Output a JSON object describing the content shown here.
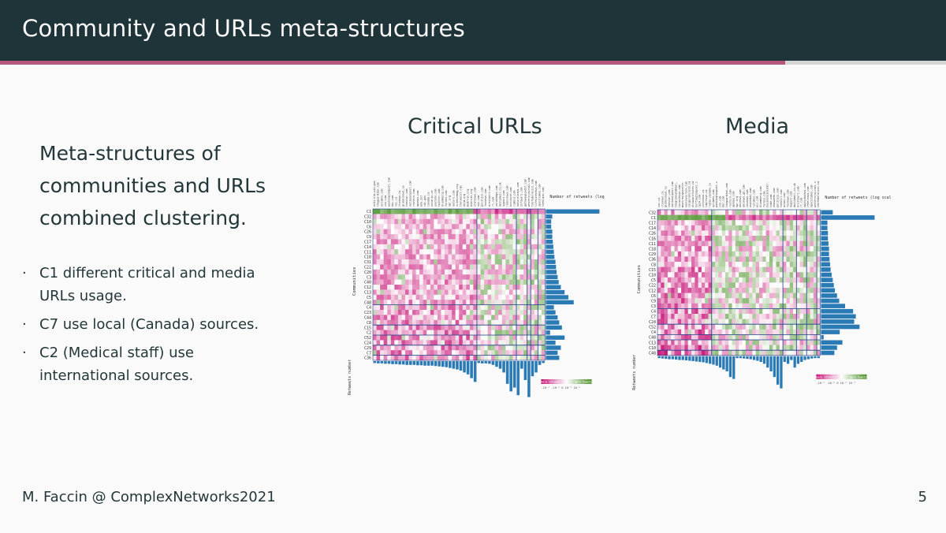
{
  "slide": {
    "title": "Community and URLs meta-structures",
    "progress": 0.83,
    "lead_text": "Meta-structures of communities and URLs combined clustering.",
    "bullets": [
      {
        "key": "C1",
        "text": " different critical and media URLs usage."
      },
      {
        "key": "C7",
        "text": " use local (Canada) sources."
      },
      {
        "key": "C2",
        "text": " (Medical staff) use international sources."
      }
    ],
    "footer_author": "M. Faccin @ ComplexNetworks2021",
    "page_number": "5"
  },
  "figures": [
    {
      "panel_title": "Critical URLs",
      "y_axis_label": "Communities",
      "bottom_label": "Retweets number",
      "right_label": "Number of retweets (log scale)",
      "rows": [
        "C1",
        "C32",
        "C10",
        "C6",
        "C26",
        "C9",
        "C17",
        "C14",
        "C11",
        "C18",
        "C31",
        "C22",
        "C20",
        "C3",
        "C40",
        "C12",
        "C13",
        "C5",
        "C48",
        "C4",
        "C23",
        "C44",
        "C8",
        "C15",
        "C2",
        "C52",
        "C24",
        "C29",
        "C7",
        "C36"
      ],
      "n_cols": 48,
      "row_splits": [
        19,
        23,
        25,
        27,
        29
      ],
      "col_splits": [
        29,
        40,
        43,
        44,
        46
      ],
      "right_bars": [
        1.0,
        0.12,
        0.1,
        0.1,
        0.12,
        0.12,
        0.13,
        0.14,
        0.15,
        0.16,
        0.18,
        0.19,
        0.2,
        0.22,
        0.24,
        0.28,
        0.35,
        0.42,
        0.52,
        0.15,
        0.18,
        0.22,
        0.25,
        0.3,
        0.08,
        0.35,
        0.18,
        0.28,
        0.22,
        0.25
      ],
      "bottom_bars": [
        0.05,
        0.06,
        0.06,
        0.07,
        0.07,
        0.08,
        0.08,
        0.09,
        0.09,
        0.1,
        0.1,
        0.1,
        0.11,
        0.11,
        0.12,
        0.12,
        0.12,
        0.13,
        0.14,
        0.15,
        0.16,
        0.18,
        0.2,
        0.22,
        0.25,
        0.3,
        0.35,
        0.45,
        0.55,
        0.05,
        0.06,
        0.06,
        0.07,
        0.1,
        0.15,
        0.2,
        0.3,
        0.6,
        0.8,
        0.7,
        0.9,
        0.2,
        0.5,
        0.95,
        0.4,
        0.3,
        0.1,
        0.05
      ],
      "colorbar": {
        "left": "more retweets",
        "right": "more tweets",
        "ticks": "-10⁻¹ -10⁻² 0  10⁻² 10⁻¹"
      },
      "col_labels": [
        "ncbi.nlm.nih.gov",
        "theguardian.com",
        "nytimes.com",
        "cnn.com",
        "washingtonpost.com",
        "bbc.com",
        "cbc.ca",
        "ctvnews.ca",
        "globalnews.ca",
        "thestar.com",
        "nationalpost.com",
        "reuters.com",
        "apnews.com",
        "who.int",
        "cdc.gov",
        "canada.ca",
        "ontario.ca",
        "youtube.com",
        "twitter.com",
        "bloomberg.com",
        "forbes.com",
        "npr.org",
        "nature.com",
        "sciencemag.org",
        "thelancet.com",
        "nejm.org",
        "medrxiv.org",
        "biorxiv.org",
        "statnews.com",
        "vox.com",
        "politico.com",
        "foxnews.com",
        "breitbart.com",
        "rt.com",
        "zerohedge.com",
        "dailymail.co.uk",
        "nypost.com",
        "rebelnews.com",
        "bitchute.com",
        "rumble.com",
        "naturalnews.com",
        "infowars.com",
        "gatewaypundit.com",
        "westernjournal.com",
        "thefederalist.com",
        "lifesitenews.com",
        "epochtimes.com",
        "theblaze.com"
      ]
    },
    {
      "panel_title": "Media",
      "y_axis_label": "Communities",
      "bottom_label": "Retweets number",
      "right_label": "Number of retweets (log scale)",
      "rows": [
        "C32",
        "C1",
        "C17",
        "C14",
        "C26",
        "C16",
        "C11",
        "C18",
        "C29",
        "C36",
        "C8",
        "C15",
        "C10",
        "C5",
        "C22",
        "C12",
        "C6",
        "C9",
        "C3",
        "C4",
        "C7",
        "C24",
        "C52",
        "C4",
        "C48",
        "C13",
        "C10",
        "C48"
      ],
      "n_cols": 48,
      "row_splits": [
        19,
        22,
        24,
        25,
        27
      ],
      "col_splits": [
        16,
        37,
        41,
        44,
        47
      ],
      "right_bars": [
        0.22,
        1.0,
        0.12,
        0.12,
        0.13,
        0.13,
        0.14,
        0.15,
        0.15,
        0.16,
        0.17,
        0.18,
        0.2,
        0.22,
        0.24,
        0.26,
        0.3,
        0.34,
        0.45,
        0.6,
        0.65,
        0.62,
        0.72,
        0.35,
        0.05,
        0.4,
        0.3,
        0.25
      ],
      "bottom_bars": [
        0.05,
        0.06,
        0.07,
        0.08,
        0.08,
        0.09,
        0.1,
        0.1,
        0.11,
        0.12,
        0.13,
        0.14,
        0.15,
        0.16,
        0.18,
        0.2,
        0.22,
        0.25,
        0.3,
        0.35,
        0.4,
        0.55,
        0.6,
        0.05,
        0.05,
        0.06,
        0.07,
        0.08,
        0.1,
        0.12,
        0.15,
        0.2,
        0.3,
        0.4,
        0.55,
        0.75,
        0.85,
        0.15,
        0.2,
        0.1,
        0.3,
        0.2,
        0.15,
        0.1,
        0.08,
        0.06,
        0.05,
        0.05
      ],
      "colorbar": {
        "left": "more retweets",
        "right": "more tweets",
        "ticks": "-10⁻¹ -10⁻² 0  10⁻² 10⁻¹"
      },
      "col_labels": [
        "cbc.ca",
        "ctvnews.ca",
        "globalnews.ca",
        "thestar.com",
        "nationalpost.com",
        "theglobeandmail.com",
        "torontosun.com",
        "montrealgazette.com",
        "vancouversun.com",
        "calgaryherald.com",
        "ottawacitizen.com",
        "huffingtonpost.ca",
        "cp24.com",
        "citynews.ca",
        "lapresse.ca",
        "radio-canada.ca",
        "nytimes.com",
        "washingtonpost.com",
        "cnn.com",
        "bbc.com",
        "theguardian.com",
        "reuters.com",
        "apnews.com",
        "npr.org",
        "nbcnews.com",
        "abcnews.go.com",
        "cbsnews.com",
        "usatoday.com",
        "latimes.com",
        "wsj.com",
        "bloomberg.com",
        "forbes.com",
        "businessinsider.com",
        "time.com",
        "newsweek.com",
        "politico.com",
        "thehill.com",
        "axios.com",
        "foxnews.com",
        "nypost.com",
        "dailymail.co.uk",
        "breitbart.com",
        "rt.com",
        "sputniknews.com",
        "rebelnews.com",
        "epochtimes.com",
        "westernjournal.com",
        "thefederalist.com"
      ]
    }
  ]
}
